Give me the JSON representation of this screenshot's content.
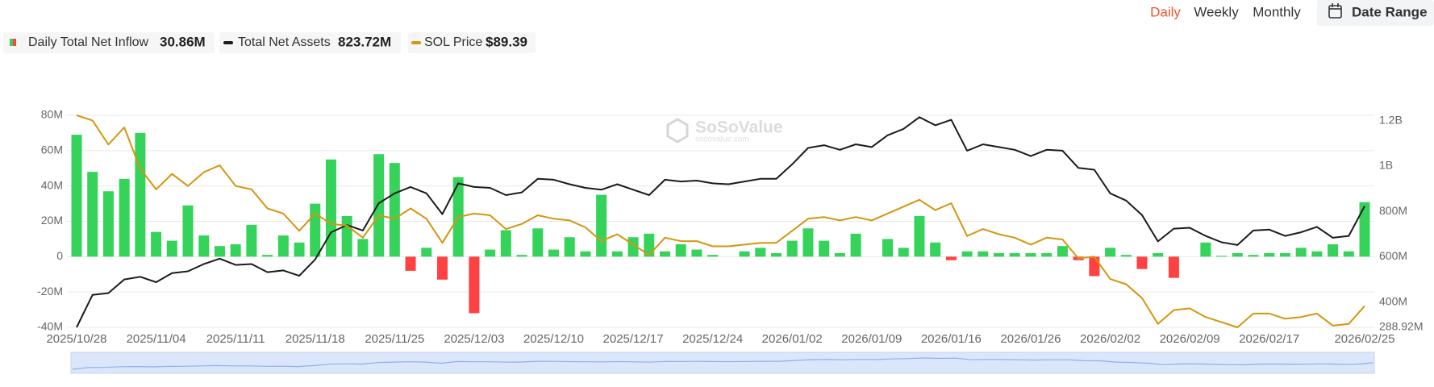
{
  "controls": {
    "periods": [
      "Daily",
      "Weekly",
      "Monthly"
    ],
    "active": 0,
    "date_range": "Date Range"
  },
  "chart_data": {
    "type": "bar-line",
    "watermark": "SoSoValue",
    "watermark_url": "sosovalue.com",
    "categories": [
      "2025/10/28",
      null,
      null,
      null,
      null,
      "2025/11/04",
      null,
      null,
      null,
      null,
      "2025/11/11",
      null,
      null,
      null,
      null,
      "2025/11/18",
      null,
      null,
      null,
      null,
      "2025/11/25",
      null,
      null,
      null,
      null,
      "2025/12/03",
      null,
      null,
      null,
      null,
      "2025/12/10",
      null,
      null,
      null,
      null,
      "2025/12/17",
      null,
      null,
      null,
      null,
      "2025/12/24",
      null,
      null,
      null,
      null,
      "2026/01/02",
      null,
      null,
      null,
      null,
      "2026/01/09",
      null,
      null,
      null,
      null,
      "2026/01/16",
      null,
      null,
      null,
      null,
      "2026/01/26",
      null,
      null,
      null,
      null,
      "2026/02/02",
      null,
      null,
      null,
      null,
      "2026/02/09",
      null,
      null,
      null,
      null,
      "2026/02/17",
      null,
      null,
      null,
      null,
      null,
      "2026/02/25"
    ],
    "ylim": [
      -40,
      80
    ],
    "yticks": [
      {
        "value": -40,
        "label": "-40M"
      },
      {
        "value": -20,
        "label": "-20M"
      },
      {
        "value": 0,
        "label": "0"
      },
      {
        "value": 20,
        "label": "20M"
      },
      {
        "value": 40,
        "label": "40M"
      },
      {
        "value": 60,
        "label": "60M"
      },
      {
        "value": 80,
        "label": "80M"
      }
    ],
    "y2lim": [
      288.92,
      1224
    ],
    "y2ticks": [
      {
        "value": 288.92,
        "label": "288.92M"
      },
      {
        "value": 400,
        "label": "400M"
      },
      {
        "value": 600,
        "label": "600M"
      },
      {
        "value": 800,
        "label": "800M"
      },
      {
        "value": 1000,
        "label": "1B"
      },
      {
        "value": 1200,
        "label": "1.2B"
      }
    ],
    "grid": true,
    "series": [
      {
        "name": "Daily Total Net Inflow",
        "type": "bar",
        "color": "#36d35b",
        "negative_color": "#ff4141",
        "values": [
          69,
          48,
          37,
          44,
          70,
          14,
          9,
          29,
          12,
          6,
          7,
          18,
          1,
          12,
          8,
          30,
          55,
          23,
          10,
          58,
          53,
          -8,
          5,
          -13,
          45,
          -32,
          4,
          15,
          1,
          16,
          4,
          11,
          3,
          35,
          3,
          11,
          13,
          3,
          7,
          4,
          1,
          0,
          3,
          5,
          2,
          9,
          16,
          9,
          2,
          13,
          0,
          10,
          5,
          23,
          8,
          -2,
          3,
          3,
          2,
          2,
          2,
          2,
          6,
          -2,
          -11,
          5,
          1,
          -7,
          2,
          -12,
          0,
          8,
          0.5,
          2,
          1,
          2,
          2,
          5,
          3,
          7,
          3,
          30.86
        ],
        "value_labels": [
          null,
          null,
          null,
          null,
          null,
          null,
          null,
          null,
          null,
          null,
          null,
          null,
          null,
          null,
          null,
          null,
          null,
          null,
          null,
          null,
          null,
          null,
          null,
          null,
          null,
          null,
          null,
          null,
          null,
          null,
          null,
          null,
          null,
          null,
          null,
          null,
          null,
          null,
          null,
          null,
          null,
          null,
          null,
          null,
          null,
          null,
          null,
          null,
          null,
          null,
          null,
          null,
          null,
          null,
          null,
          null,
          null,
          null,
          null,
          null,
          null,
          null,
          null,
          null,
          null,
          null,
          null,
          null,
          null,
          null,
          null,
          null,
          null,
          null,
          null,
          null,
          null,
          null,
          null,
          null,
          null,
          "30.86M"
        ]
      },
      {
        "name": "Total Net Assets",
        "type": "line",
        "axis": "y2",
        "color": "#1b1b1b",
        "values": [
          288.92,
          432,
          440,
          500,
          512,
          488,
          528,
          536,
          568,
          592,
          564,
          568,
          532,
          540,
          516,
          588,
          708,
          740,
          716,
          836,
          880,
          908,
          880,
          788,
          924,
          908,
          904,
          872,
          884,
          944,
          940,
          920,
          904,
          896,
          920,
          896,
          872,
          940,
          932,
          936,
          924,
          920,
          932,
          944,
          944,
          1008,
          1080,
          1092,
          1072,
          1096,
          1084,
          1136,
          1164,
          1216,
          1180,
          1204,
          1068,
          1096,
          1084,
          1072,
          1044,
          1072,
          1068,
          992,
          984,
          880,
          848,
          784,
          668,
          724,
          728,
          692,
          664,
          652,
          716,
          720,
          692,
          708,
          732,
          684,
          692,
          823.72
        ],
        "value_labels": [
          null,
          null,
          null,
          null,
          null,
          null,
          null,
          null,
          null,
          null,
          null,
          null,
          null,
          null,
          null,
          null,
          null,
          null,
          null,
          null,
          null,
          null,
          null,
          null,
          null,
          null,
          null,
          null,
          null,
          null,
          null,
          null,
          null,
          null,
          null,
          null,
          null,
          null,
          null,
          null,
          null,
          null,
          null,
          null,
          null,
          null,
          null,
          null,
          null,
          null,
          null,
          null,
          null,
          null,
          null,
          null,
          null,
          null,
          null,
          null,
          null,
          null,
          null,
          null,
          null,
          null,
          null,
          null,
          null,
          null,
          null,
          null,
          null,
          null,
          null,
          null,
          null,
          null,
          null,
          null,
          null,
          "823.72M"
        ]
      },
      {
        "name": "SOL Price",
        "type": "line",
        "axis": "y3",
        "color": "#d4960f",
        "values": [
          200,
          197,
          183,
          193,
          169,
          157,
          166,
          159,
          167,
          171,
          159,
          157,
          146,
          143,
          133,
          143,
          137,
          136,
          129,
          142,
          140,
          146,
          140,
          126,
          141,
          143,
          142,
          134,
          137,
          142,
          140,
          139,
          135,
          127,
          131,
          125,
          119,
          129,
          127,
          127,
          124,
          124,
          125,
          126,
          126,
          133,
          140,
          141,
          139,
          141,
          139,
          143,
          147,
          151,
          145,
          149,
          130,
          134,
          131,
          129,
          125,
          129,
          128,
          117,
          118,
          105,
          102,
          94,
          79,
          87,
          88,
          83,
          80,
          77,
          85,
          85,
          82,
          83,
          85,
          78,
          79,
          89.39
        ],
        "value_labels": [
          null,
          null,
          null,
          null,
          null,
          null,
          null,
          null,
          null,
          null,
          null,
          null,
          null,
          null,
          null,
          null,
          null,
          null,
          null,
          null,
          null,
          null,
          null,
          null,
          null,
          null,
          null,
          null,
          null,
          null,
          null,
          null,
          null,
          null,
          null,
          null,
          null,
          null,
          null,
          null,
          null,
          null,
          null,
          null,
          null,
          null,
          null,
          null,
          null,
          null,
          null,
          null,
          null,
          null,
          null,
          null,
          null,
          null,
          null,
          null,
          null,
          null,
          null,
          null,
          null,
          null,
          null,
          null,
          null,
          null,
          null,
          null,
          null,
          null,
          null,
          null,
          null,
          null,
          null,
          null,
          null,
          "$89.39"
        ]
      }
    ]
  }
}
